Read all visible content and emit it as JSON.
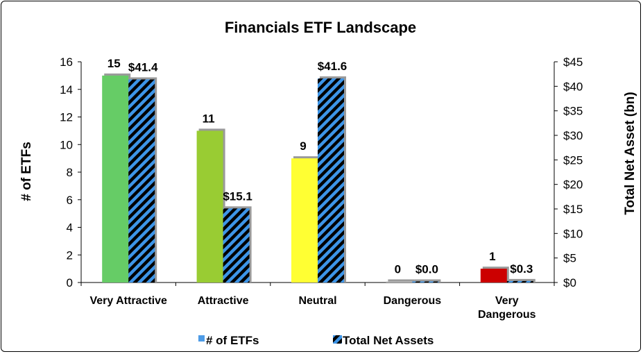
{
  "chart_data": {
    "type": "bar",
    "title": "Financials ETF Landscape",
    "categories": [
      [
        "Very Attractive"
      ],
      [
        "Attractive"
      ],
      [
        "Neutral"
      ],
      [
        "Dangerous"
      ],
      [
        "Very",
        "Dangerous"
      ]
    ],
    "category_colors": [
      "#66cc66",
      "#99cc33",
      "#ffff33",
      "#bbbbbb",
      "#cc0000"
    ],
    "series": [
      {
        "name": "# of ETFs",
        "axis": "left",
        "values": [
          15,
          11,
          9,
          0,
          1
        ],
        "labels": [
          "15",
          "11",
          "9",
          "0",
          "1"
        ]
      },
      {
        "name": "Total Net Assets",
        "axis": "right",
        "values": [
          41.4,
          15.1,
          41.6,
          0.0,
          0.3
        ],
        "labels": [
          "$41.4",
          "$15.1",
          "$41.6",
          "$0.0",
          "$0.3"
        ],
        "pattern": "black-blue-diagonal-stripes"
      }
    ],
    "ylabel": "# of ETFs",
    "ylim": [
      0,
      16
    ],
    "yticks": [
      "0",
      "2",
      "4",
      "6",
      "8",
      "10",
      "12",
      "14",
      "16"
    ],
    "y2label": "Total Net Asset (bn)",
    "y2lim": [
      0,
      45
    ],
    "y2ticks": [
      "$0",
      "$5",
      "$10",
      "$15",
      "$20",
      "$25",
      "$30",
      "$35",
      "$40",
      "$45"
    ],
    "grid": false,
    "legend_position": "bottom",
    "colors": {
      "stripe_blue": "#3d95e8",
      "stripe_black": "#000000",
      "legend_etf": "#4d9be6"
    }
  }
}
